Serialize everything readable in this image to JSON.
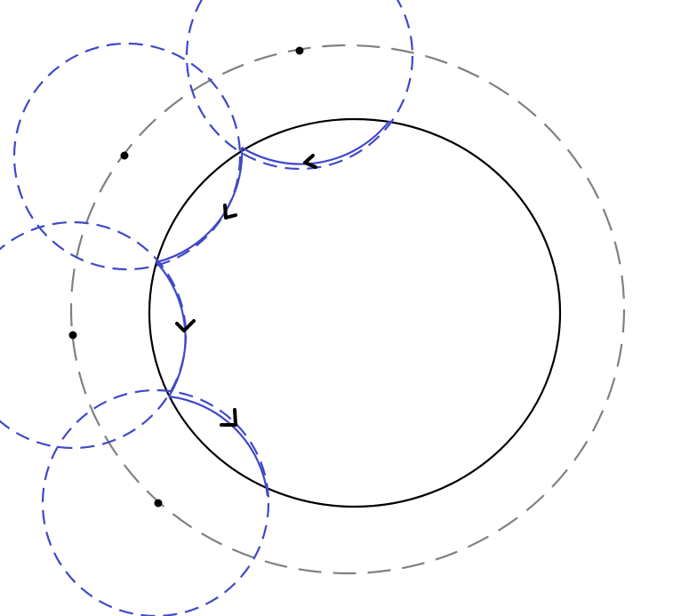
{
  "diagram": {
    "background": "#ffffff",
    "colors": {
      "main_circle": "#000000",
      "guide_circle": "#808080",
      "small_circles": "#3f48c8",
      "arcs": "#3f48c8",
      "points": "#000000",
      "arrows": "#000000"
    },
    "main_circle": {
      "style": "solid"
    },
    "guide_circle": {
      "style": "dashed"
    },
    "small_circles": {
      "count": 4,
      "style": "dashed"
    },
    "highlighted_arcs": {
      "count": 4,
      "style": "solid"
    },
    "center_points": {
      "count": 4
    },
    "direction_arrows": {
      "count": 4,
      "direction": "counterclockwise"
    }
  }
}
